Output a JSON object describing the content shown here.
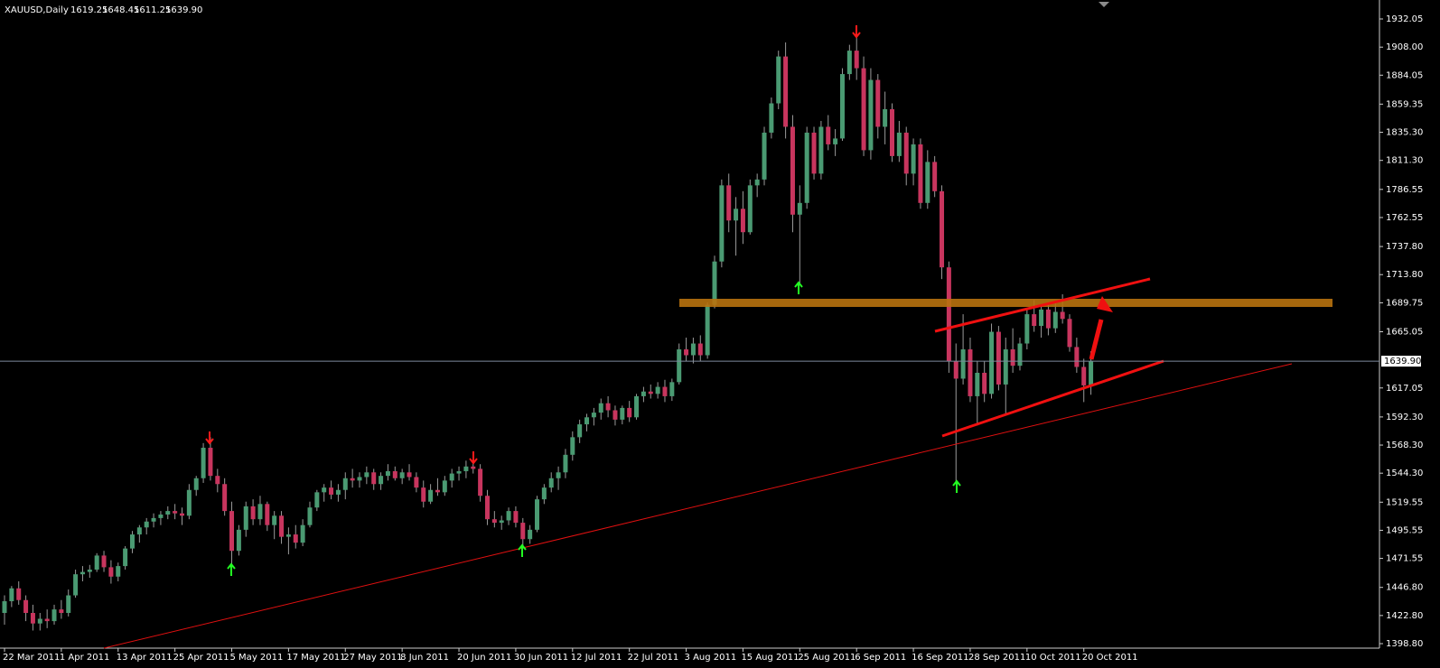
{
  "chart_data": {
    "type": "candlestick",
    "title": "XAUUSD,Daily",
    "header_values": [
      "1619.25",
      "1648.45",
      "1611.25",
      "1639.90"
    ],
    "up_color": "#4a9a72",
    "down_color": "#c8355e",
    "wick_color": "#9a9a9a",
    "current_price": {
      "value": 1639.9,
      "label": "1639.90"
    },
    "ylim": [
      1394.95,
      1948.23
    ],
    "yticks": [
      1932.05,
      {
        "value": 1908,
        "label": "1908.00"
      },
      1884.05,
      1859.35,
      {
        "value": 1835.3,
        "label": "1835.30"
      },
      {
        "value": 1811.3,
        "label": "1811.30"
      },
      1786.55,
      1762.55,
      {
        "value": 1737.8,
        "label": "1737.80"
      },
      {
        "value": 1713.8,
        "label": "1713.80"
      },
      1689.75,
      1665.05,
      1617.05,
      {
        "value": 1592.3,
        "label": "1592.30"
      },
      {
        "value": 1568.3,
        "label": "1568.30"
      },
      {
        "value": 1544.3,
        "label": "1544.30"
      },
      1519.55,
      1495.55,
      1471.55,
      {
        "value": 1446.8,
        "label": "1446.80"
      },
      {
        "value": 1422.8,
        "label": "1422.80"
      },
      {
        "value": 1398.8,
        "label": "1398.80"
      }
    ],
    "categories": [
      "22 Mar 2011",
      null,
      null,
      null,
      null,
      null,
      null,
      null,
      "1 Apr 2011",
      null,
      null,
      null,
      null,
      null,
      null,
      null,
      "13 Apr 2011",
      null,
      null,
      null,
      null,
      null,
      null,
      null,
      "25 Apr 2011",
      null,
      null,
      null,
      null,
      null,
      null,
      null,
      "5 May 2011",
      null,
      null,
      null,
      null,
      null,
      null,
      null,
      "17 May 2011",
      null,
      null,
      null,
      null,
      null,
      null,
      null,
      "27 May 2011",
      null,
      null,
      null,
      null,
      null,
      null,
      null,
      "8 Jun 2011",
      null,
      null,
      null,
      null,
      null,
      null,
      null,
      "20 Jun 2011",
      null,
      null,
      null,
      null,
      null,
      null,
      null,
      "30 Jun 2011",
      null,
      null,
      null,
      null,
      null,
      null,
      null,
      "12 Jul 2011",
      null,
      null,
      null,
      null,
      null,
      null,
      null,
      "22 Jul 2011",
      null,
      null,
      null,
      null,
      null,
      null,
      null,
      "3 Aug 2011",
      null,
      null,
      null,
      null,
      null,
      null,
      null,
      "15 Aug 2011",
      null,
      null,
      null,
      null,
      null,
      null,
      null,
      "25 Aug 2011",
      null,
      null,
      null,
      null,
      null,
      null,
      null,
      "6 Sep 2011",
      null,
      null,
      null,
      null,
      null,
      null,
      null,
      "16 Sep 2011",
      null,
      null,
      null,
      null,
      null,
      null,
      null,
      "28 Sep 2011",
      null,
      null,
      null,
      null,
      null,
      null,
      null,
      "10 Oct 2011",
      null,
      null,
      null,
      null,
      null,
      null,
      null,
      "20 Oct 2011",
      null
    ],
    "candles": [
      [
        1425,
        1440,
        1415,
        1435
      ],
      [
        1435,
        1448,
        1430,
        1446
      ],
      [
        1446,
        1452,
        1432,
        1436
      ],
      [
        1436,
        1440,
        1418,
        1425
      ],
      [
        1425,
        1432,
        1410,
        1416
      ],
      [
        1416,
        1425,
        1410,
        1420
      ],
      [
        1420,
        1428,
        1412,
        1418
      ],
      [
        1418,
        1432,
        1415,
        1428
      ],
      [
        1428,
        1436,
        1420,
        1425
      ],
      [
        1425,
        1445,
        1422,
        1440
      ],
      [
        1440,
        1462,
        1438,
        1458
      ],
      [
        1458,
        1465,
        1452,
        1460
      ],
      [
        1460,
        1466,
        1455,
        1462
      ],
      [
        1462,
        1476,
        1460,
        1474
      ],
      [
        1474,
        1478,
        1460,
        1464
      ],
      [
        1464,
        1470,
        1450,
        1456
      ],
      [
        1456,
        1468,
        1452,
        1465
      ],
      [
        1465,
        1482,
        1462,
        1480
      ],
      [
        1480,
        1495,
        1476,
        1492
      ],
      [
        1492,
        1500,
        1485,
        1498
      ],
      [
        1498,
        1506,
        1492,
        1503
      ],
      [
        1503,
        1510,
        1498,
        1506
      ],
      [
        1506,
        1512,
        1500,
        1509
      ],
      [
        1509,
        1516,
        1505,
        1512
      ],
      [
        1512,
        1518,
        1505,
        1510
      ],
      [
        1510,
        1515,
        1500,
        1508
      ],
      [
        1508,
        1535,
        1505,
        1530
      ],
      [
        1530,
        1542,
        1525,
        1540
      ],
      [
        1540,
        1570,
        1536,
        1566
      ],
      [
        1566,
        1575,
        1538,
        1542
      ],
      [
        1542,
        1548,
        1528,
        1535
      ],
      [
        1535,
        1540,
        1508,
        1512
      ],
      [
        1512,
        1520,
        1462,
        1478
      ],
      [
        1478,
        1500,
        1474,
        1496
      ],
      [
        1496,
        1520,
        1490,
        1516
      ],
      [
        1516,
        1522,
        1500,
        1505
      ],
      [
        1505,
        1525,
        1500,
        1518
      ],
      [
        1518,
        1520,
        1495,
        1500
      ],
      [
        1500,
        1512,
        1488,
        1508
      ],
      [
        1508,
        1512,
        1484,
        1490
      ],
      [
        1490,
        1498,
        1475,
        1492
      ],
      [
        1492,
        1500,
        1480,
        1485
      ],
      [
        1485,
        1505,
        1482,
        1500
      ],
      [
        1500,
        1520,
        1498,
        1515
      ],
      [
        1515,
        1530,
        1512,
        1528
      ],
      [
        1528,
        1535,
        1520,
        1532
      ],
      [
        1532,
        1538,
        1522,
        1526
      ],
      [
        1526,
        1535,
        1520,
        1530
      ],
      [
        1530,
        1545,
        1522,
        1540
      ],
      [
        1540,
        1548,
        1532,
        1538
      ],
      [
        1538,
        1545,
        1532,
        1541
      ],
      [
        1541,
        1550,
        1535,
        1545
      ],
      [
        1545,
        1548,
        1530,
        1535
      ],
      [
        1535,
        1545,
        1530,
        1542
      ],
      [
        1542,
        1552,
        1538,
        1546
      ],
      [
        1546,
        1550,
        1538,
        1540
      ],
      [
        1540,
        1548,
        1535,
        1545
      ],
      [
        1545,
        1552,
        1538,
        1541
      ],
      [
        1541,
        1545,
        1528,
        1532
      ],
      [
        1532,
        1538,
        1515,
        1520
      ],
      [
        1520,
        1535,
        1518,
        1530
      ],
      [
        1530,
        1540,
        1525,
        1528
      ],
      [
        1528,
        1542,
        1525,
        1538
      ],
      [
        1538,
        1548,
        1532,
        1544
      ],
      [
        1544,
        1550,
        1538,
        1546
      ],
      [
        1546,
        1555,
        1540,
        1550
      ],
      [
        1550,
        1560,
        1544,
        1548
      ],
      [
        1548,
        1552,
        1520,
        1525
      ],
      [
        1525,
        1530,
        1500,
        1505
      ],
      [
        1505,
        1512,
        1498,
        1502
      ],
      [
        1502,
        1508,
        1496,
        1504
      ],
      [
        1504,
        1515,
        1500,
        1512
      ],
      [
        1512,
        1516,
        1498,
        1502
      ],
      [
        1502,
        1506,
        1480,
        1488
      ],
      [
        1488,
        1500,
        1484,
        1496
      ],
      [
        1496,
        1525,
        1494,
        1522
      ],
      [
        1522,
        1535,
        1518,
        1532
      ],
      [
        1532,
        1545,
        1528,
        1540
      ],
      [
        1540,
        1550,
        1530,
        1545
      ],
      [
        1545,
        1565,
        1540,
        1560
      ],
      [
        1560,
        1580,
        1555,
        1575
      ],
      [
        1575,
        1590,
        1570,
        1586
      ],
      [
        1586,
        1595,
        1580,
        1592
      ],
      [
        1592,
        1600,
        1585,
        1596
      ],
      [
        1596,
        1608,
        1590,
        1604
      ],
      [
        1604,
        1610,
        1592,
        1598
      ],
      [
        1598,
        1602,
        1585,
        1590
      ],
      [
        1590,
        1602,
        1586,
        1600
      ],
      [
        1600,
        1606,
        1588,
        1592
      ],
      [
        1592,
        1612,
        1590,
        1610
      ],
      [
        1610,
        1618,
        1605,
        1614
      ],
      [
        1614,
        1620,
        1608,
        1612
      ],
      [
        1612,
        1622,
        1608,
        1618
      ],
      [
        1618,
        1624,
        1605,
        1610
      ],
      [
        1610,
        1625,
        1606,
        1622
      ],
      [
        1622,
        1655,
        1620,
        1650
      ],
      [
        1650,
        1660,
        1640,
        1645
      ],
      [
        1645,
        1660,
        1638,
        1655
      ],
      [
        1655,
        1662,
        1640,
        1645
      ],
      [
        1645,
        1690,
        1642,
        1688
      ],
      [
        1688,
        1730,
        1685,
        1725
      ],
      [
        1725,
        1795,
        1720,
        1790
      ],
      [
        1790,
        1800,
        1750,
        1760
      ],
      [
        1760,
        1780,
        1730,
        1770
      ],
      [
        1770,
        1785,
        1740,
        1750
      ],
      [
        1750,
        1795,
        1748,
        1790
      ],
      [
        1790,
        1800,
        1780,
        1795
      ],
      [
        1795,
        1840,
        1790,
        1835
      ],
      [
        1835,
        1865,
        1830,
        1860
      ],
      [
        1860,
        1905,
        1855,
        1900
      ],
      [
        1900,
        1912,
        1830,
        1840
      ],
      [
        1840,
        1850,
        1750,
        1765
      ],
      [
        1765,
        1790,
        1705,
        1775
      ],
      [
        1775,
        1840,
        1770,
        1835
      ],
      [
        1835,
        1840,
        1795,
        1800
      ],
      [
        1800,
        1845,
        1795,
        1840
      ],
      [
        1840,
        1850,
        1820,
        1825
      ],
      [
        1825,
        1838,
        1815,
        1830
      ],
      [
        1830,
        1890,
        1828,
        1885
      ],
      [
        1885,
        1910,
        1880,
        1905
      ],
      [
        1905,
        1925,
        1880,
        1890
      ],
      [
        1890,
        1900,
        1815,
        1820
      ],
      [
        1820,
        1890,
        1812,
        1880
      ],
      [
        1880,
        1885,
        1830,
        1840
      ],
      [
        1840,
        1870,
        1825,
        1855
      ],
      [
        1855,
        1860,
        1810,
        1815
      ],
      [
        1815,
        1845,
        1810,
        1835
      ],
      [
        1835,
        1840,
        1790,
        1800
      ],
      [
        1800,
        1830,
        1790,
        1825
      ],
      [
        1825,
        1830,
        1770,
        1775
      ],
      [
        1775,
        1820,
        1770,
        1810
      ],
      [
        1810,
        1815,
        1780,
        1785
      ],
      [
        1785,
        1790,
        1710,
        1720
      ],
      [
        1720,
        1725,
        1630,
        1640
      ],
      [
        1640,
        1655,
        1535,
        1625
      ],
      [
        1625,
        1680,
        1620,
        1650
      ],
      [
        1650,
        1660,
        1605,
        1610
      ],
      [
        1610,
        1640,
        1585,
        1630
      ],
      [
        1630,
        1640,
        1605,
        1612
      ],
      [
        1612,
        1672,
        1608,
        1665
      ],
      [
        1665,
        1670,
        1615,
        1620
      ],
      [
        1620,
        1660,
        1595,
        1650
      ],
      [
        1650,
        1668,
        1630,
        1636
      ],
      [
        1636,
        1660,
        1632,
        1655
      ],
      [
        1655,
        1685,
        1650,
        1680
      ],
      [
        1680,
        1692,
        1665,
        1670
      ],
      [
        1670,
        1688,
        1660,
        1684
      ],
      [
        1684,
        1690,
        1662,
        1668
      ],
      [
        1668,
        1690,
        1664,
        1682
      ],
      [
        1682,
        1697,
        1672,
        1676
      ],
      [
        1676,
        1680,
        1648,
        1652
      ],
      [
        1652,
        1660,
        1630,
        1635
      ],
      [
        1635,
        1642,
        1605,
        1619.25
      ],
      [
        1619.25,
        1648.45,
        1611.25,
        1639.9
      ]
    ]
  }
}
